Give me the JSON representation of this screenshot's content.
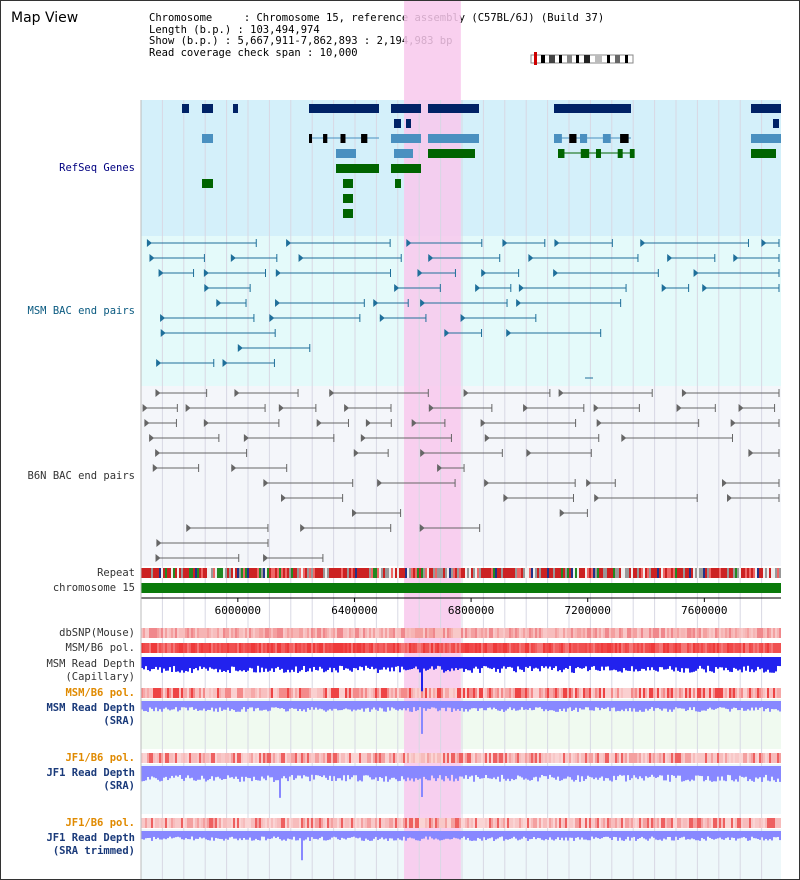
{
  "header": {
    "title": "Map View",
    "info_lines": [
      "Chromosome     : Chromosome 15, reference assembly (C57BL/6J) (Build 37)",
      "Length (b.p.) : 103,494,974",
      "Show (b.p.) : 5,667,911-7,862,893 : 2,194,983 bp",
      "Read coverage check span : 10,000"
    ]
  },
  "tracks": {
    "refseq": "RefSeq Genes",
    "msm_bac": "MSM BAC end pairs",
    "b6n_bac": "B6N BAC end pairs",
    "repeat": "Repeat",
    "chromosome": "chromosome 15",
    "dbsnp": "dbSNP(Mouse)",
    "msm_b6_pol": "MSM/B6 pol.",
    "msm_read_depth_cap_1": "MSM Read Depth",
    "msm_read_depth_cap_2": "(Capillary)",
    "msm_b6_pol_2": "MSM/B6 pol.",
    "msm_read_depth_sra_1": "MSM Read Depth",
    "msm_read_depth_sra_2": "(SRA)",
    "jf1_b6_pol": "JF1/B6 pol.",
    "jf1_read_depth_sra_1": "JF1 Read Depth",
    "jf1_read_depth_sra_2": "(SRA)",
    "jf1_b6_pol_2": "JF1/B6 pol.",
    "jf1_read_depth_trim_1": "JF1 Read Depth",
    "jf1_read_depth_trim_2": "(SRA trimmed)"
  },
  "axis": {
    "ticks": [
      "6000000",
      "6400000",
      "6800000",
      "7200000",
      "7600000"
    ],
    "tick_values": [
      6000000,
      6400000,
      6800000,
      7200000,
      7600000
    ],
    "range": [
      5667911,
      7862893
    ]
  },
  "highlight": {
    "start": 6570000,
    "end": 6765000,
    "color": "#f8c8ec"
  },
  "colors": {
    "refseq_bg": "#d4f0fa",
    "msm_bg": "#e4fafa",
    "b6n_bg": "#f4f6fa",
    "gene_dark": "#002266",
    "gene_light": "#4a90c0",
    "gene_green": "#006400",
    "msm_line": "#1f6f9a",
    "b6n_line": "#666666",
    "chrom_green": "#0a7a0a",
    "depth_blue": "#2222ee",
    "depth_light": "#8888ff"
  }
}
